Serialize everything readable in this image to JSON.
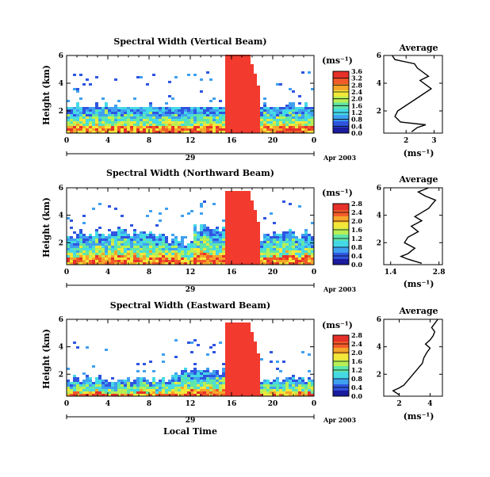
{
  "date_label": "Apr 2003",
  "day_label": "29",
  "xlabel": "Local Time",
  "ylabel": "Height (km)",
  "units": "(ms⁻¹)",
  "colors": {
    "red": "#f23a2e",
    "scale": [
      "#1b1b9e",
      "#2f55e0",
      "#3fa0f0",
      "#45d9e6",
      "#5fe6a8",
      "#b8ef55",
      "#f2e83a",
      "#f5a52a",
      "#f25a2a",
      "#e6302a"
    ]
  },
  "chart_data": [
    {
      "type": "heatmap",
      "title": "Spectral Width (Vertical Beam)",
      "xlabel": "",
      "ylabel": "Height (km)",
      "x_ticks": [
        "0",
        "4",
        "8",
        "12",
        "16",
        "20",
        "0"
      ],
      "y_ticks": [
        "2",
        "4",
        "6"
      ],
      "x_range": [
        0,
        24
      ],
      "y_range": [
        0.4,
        6.0
      ],
      "colorbar": {
        "label": "(ms⁻¹)",
        "ticks": [
          "0.0",
          "0.4",
          "0.8",
          "1.2",
          "1.6",
          "2.0",
          "2.4",
          "2.8",
          "3.2",
          "3.6"
        ],
        "range": [
          0,
          3.6
        ]
      },
      "average_profile": {
        "title": "Average",
        "xlabel": "(ms⁻¹)",
        "x_ticks": [
          "2",
          "3"
        ],
        "y_ticks": [
          "2",
          "4",
          "6"
        ],
        "x_range": [
          1.2,
          3.3
        ],
        "x": [
          2.2,
          2.4,
          2.7,
          1.8,
          1.6,
          1.7,
          2.0,
          2.3,
          2.6,
          2.9,
          2.7,
          2.5,
          2.8,
          2.6,
          2.4,
          2.3,
          1.6,
          1.5
        ],
        "y": [
          0.5,
          0.8,
          1.0,
          1.2,
          1.6,
          2.0,
          2.4,
          2.8,
          3.2,
          3.6,
          3.9,
          4.2,
          4.5,
          4.8,
          5.1,
          5.4,
          5.7,
          6.0
        ]
      }
    },
    {
      "type": "heatmap",
      "title": "Spectral Width (Northward Beam)",
      "xlabel": "",
      "ylabel": "Height (km)",
      "x_ticks": [
        "0",
        "4",
        "8",
        "12",
        "16",
        "20",
        "0"
      ],
      "y_ticks": [
        "2",
        "4",
        "6"
      ],
      "x_range": [
        0,
        24
      ],
      "y_range": [
        0.4,
        6.0
      ],
      "colorbar": {
        "label": "(ms⁻¹)",
        "ticks": [
          "0.0",
          "0.4",
          "0.8",
          "1.2",
          "1.6",
          "2.0",
          "2.4",
          "2.8"
        ],
        "range": [
          0,
          2.8
        ]
      },
      "average_profile": {
        "title": "Average",
        "xlabel": "(ms⁻¹)",
        "x_ticks": [
          "1.4",
          "2.8"
        ],
        "y_ticks": [
          "2",
          "4",
          "6"
        ],
        "x_range": [
          1.2,
          2.9
        ],
        "x": [
          2.3,
          1.9,
          1.7,
          1.9,
          2.1,
          1.8,
          1.9,
          2.2,
          2.0,
          2.3,
          2.1,
          2.3,
          2.5,
          2.6,
          2.7,
          2.4,
          2.2,
          2.5
        ],
        "y": [
          0.5,
          0.8,
          1.0,
          1.2,
          1.6,
          2.0,
          2.4,
          2.8,
          3.2,
          3.6,
          3.9,
          4.2,
          4.5,
          4.8,
          5.1,
          5.4,
          5.7,
          6.0
        ]
      }
    },
    {
      "type": "heatmap",
      "title": "Spectral Width (Eastward Beam)",
      "xlabel": "Local Time",
      "ylabel": "Height (km)",
      "x_ticks": [
        "0",
        "4",
        "8",
        "12",
        "16",
        "20",
        "0"
      ],
      "y_ticks": [
        "2",
        "4",
        "6"
      ],
      "x_range": [
        0,
        24
      ],
      "y_range": [
        0.4,
        6.0
      ],
      "colorbar": {
        "label": "(ms⁻¹)",
        "ticks": [
          "0.0",
          "0.4",
          "0.8",
          "1.2",
          "1.6",
          "2.0",
          "2.4",
          "2.8"
        ],
        "range": [
          0,
          2.8
        ]
      },
      "average_profile": {
        "title": "Average",
        "xlabel": "(ms⁻¹)",
        "x_ticks": [
          "2",
          "4"
        ],
        "y_ticks": [
          "2",
          "4",
          "6"
        ],
        "x_range": [
          1.0,
          4.8
        ],
        "x": [
          2.0,
          1.6,
          2.0,
          2.3,
          2.6,
          2.9,
          3.2,
          3.5,
          3.6,
          3.8,
          4.0,
          3.7,
          4.0,
          4.2,
          4.3,
          4.1,
          4.3,
          4.5
        ],
        "y": [
          0.5,
          0.8,
          1.0,
          1.2,
          1.6,
          2.0,
          2.4,
          2.8,
          3.2,
          3.6,
          3.9,
          4.2,
          4.5,
          4.8,
          5.1,
          5.4,
          5.7,
          6.0
        ]
      }
    }
  ]
}
